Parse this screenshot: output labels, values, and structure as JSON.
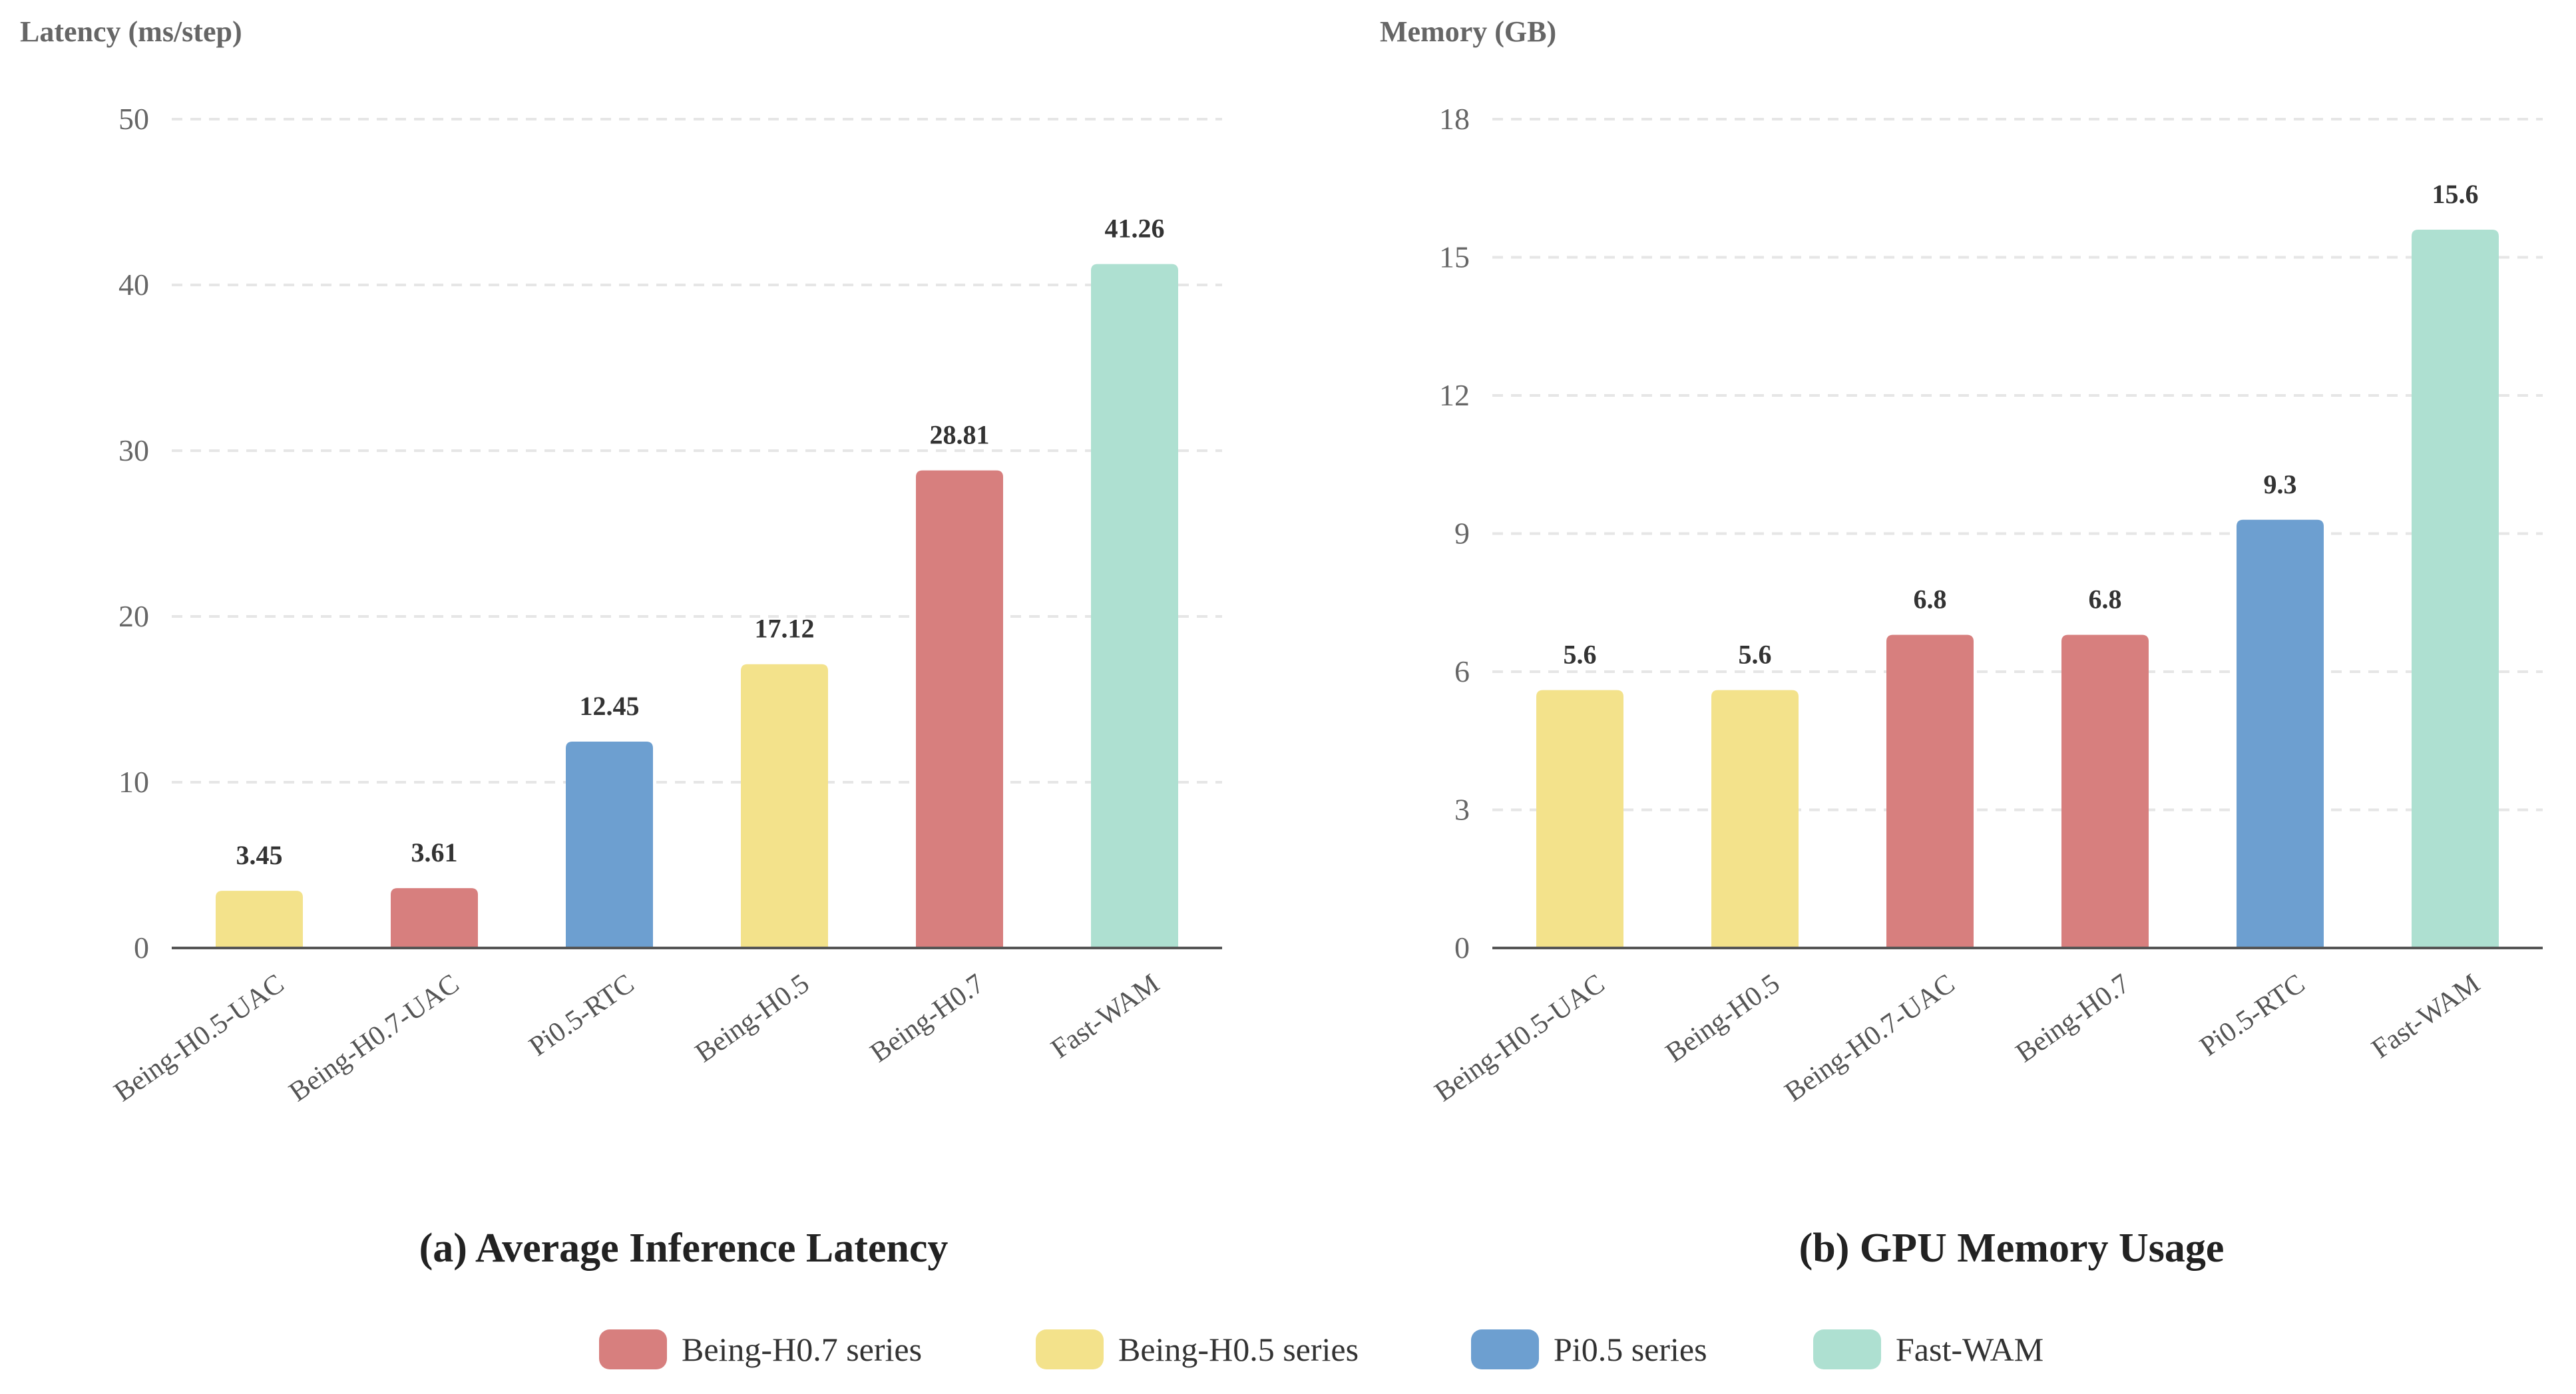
{
  "colors": {
    "Being-H0.7 series": "#d77f7e",
    "Being-H0.5 series": "#f3e28b",
    "Pi0.5 series": "#6d9fd0",
    "Fast-WAM": "#aee0d1"
  },
  "legend": [
    "Being-H0.7 series",
    "Being-H0.5 series",
    "Pi0.5 series",
    "Fast-WAM"
  ],
  "chart_data": [
    {
      "type": "bar",
      "title": "(a) Average Inference Latency",
      "ylabel": "Latency (ms/step)",
      "xlabel": "",
      "ylim": [
        0,
        50
      ],
      "yticks": [
        0,
        10,
        20,
        30,
        40,
        50
      ],
      "grid": true,
      "categories": [
        "Being-H0.5-UAC",
        "Being-H0.7-UAC",
        "Pi0.5-RTC",
        "Being-H0.5",
        "Being-H0.7",
        "Fast-WAM"
      ],
      "values": [
        3.45,
        3.61,
        12.45,
        17.12,
        28.81,
        41.26
      ],
      "labels": [
        "3.45",
        "3.61",
        "12.45",
        "17.12",
        "28.81",
        "41.26"
      ],
      "groups": [
        "Being-H0.5 series",
        "Being-H0.7 series",
        "Pi0.5 series",
        "Being-H0.5 series",
        "Being-H0.7 series",
        "Fast-WAM"
      ]
    },
    {
      "type": "bar",
      "title": "(b) GPU Memory Usage",
      "ylabel": "Memory (GB)",
      "xlabel": "",
      "ylim": [
        0,
        18
      ],
      "yticks": [
        0,
        3,
        6,
        9,
        12,
        15,
        18
      ],
      "grid": true,
      "categories": [
        "Being-H0.5-UAC",
        "Being-H0.5",
        "Being-H0.7-UAC",
        "Being-H0.7",
        "Pi0.5-RTC",
        "Fast-WAM"
      ],
      "values": [
        5.6,
        5.6,
        6.8,
        6.8,
        9.3,
        15.6
      ],
      "labels": [
        "5.6",
        "5.6",
        "6.8",
        "6.8",
        "9.3",
        "15.6"
      ],
      "groups": [
        "Being-H0.5 series",
        "Being-H0.5 series",
        "Being-H0.7 series",
        "Being-H0.7 series",
        "Pi0.5 series",
        "Fast-WAM"
      ]
    }
  ],
  "legend_placement": "bottom-center"
}
